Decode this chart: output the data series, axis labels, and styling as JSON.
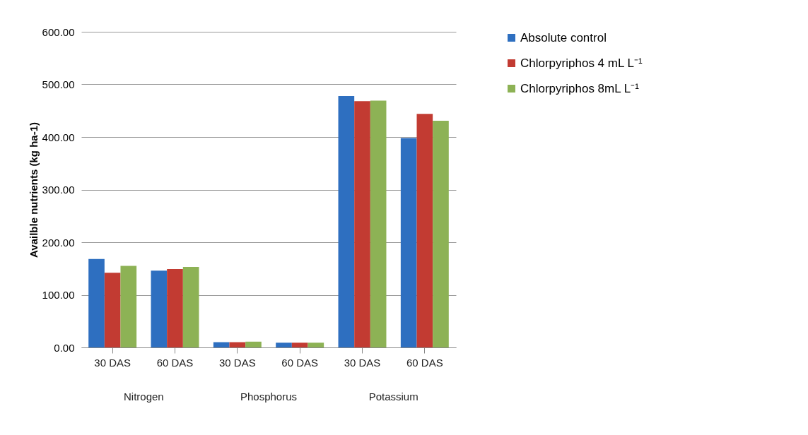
{
  "chart_data": {
    "type": "bar",
    "ylabel": "Availble nutrients (kg ha-1)",
    "categories": [
      "30 DAS",
      "60 DAS",
      "30 DAS",
      "60 DAS",
      "30 DAS",
      "60 DAS"
    ],
    "annotations": [
      "Nitrogen",
      "Phosphorus",
      "Potassium"
    ],
    "series": [
      {
        "name": "Absolute control",
        "color": "#2e6fc0",
        "values": [
          168,
          146,
          10,
          9,
          478,
          398
        ]
      },
      {
        "name": "Chlorpyriphos 4 mL L⁻¹",
        "color": "#c23b32",
        "values": [
          142,
          149,
          10,
          9,
          468,
          444
        ]
      },
      {
        "name": "Chlorpyriphos 8mL L⁻¹",
        "color": "#8db255",
        "values": [
          155,
          153,
          11,
          9,
          469,
          431
        ]
      }
    ],
    "ylim": [
      0,
      600
    ],
    "yticks": [
      {
        "value": 0,
        "label": "0.00"
      },
      {
        "value": 100,
        "label": "100.00"
      },
      {
        "value": 200,
        "label": "200.00"
      },
      {
        "value": 300,
        "label": "300.00"
      },
      {
        "value": 400,
        "label": "400.00"
      },
      {
        "value": 500,
        "label": "500.00"
      },
      {
        "value": 600,
        "label": "600.00"
      }
    ],
    "grid": "y",
    "legend": "right"
  }
}
